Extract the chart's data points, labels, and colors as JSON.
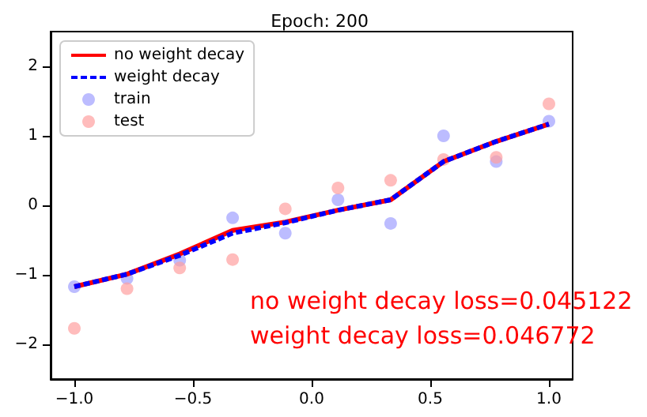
{
  "chart_data": {
    "type": "line",
    "title": "Epoch: 200",
    "x": [
      -1,
      -0.778,
      -0.556,
      -0.333,
      -0.111,
      0.111,
      0.333,
      0.556,
      0.778,
      1
    ],
    "series": [
      {
        "name": "no weight decay",
        "type": "line",
        "color": "#ff0000",
        "line_style": "solid",
        "marker": "none",
        "values": [
          -1.17,
          -0.99,
          -0.7,
          -0.36,
          -0.24,
          -0.07,
          0.08,
          0.63,
          0.92,
          1.17
        ]
      },
      {
        "name": "weight decay",
        "type": "line",
        "color": "#0000ff",
        "line_style": "dashed",
        "marker": "none",
        "values": [
          -1.17,
          -0.99,
          -0.72,
          -0.4,
          -0.25,
          -0.07,
          0.08,
          0.63,
          0.92,
          1.17
        ]
      },
      {
        "name": "train",
        "type": "scatter",
        "color": "#a0a0ff",
        "marker": "circle",
        "values": [
          -1.17,
          -1.05,
          -0.79,
          -0.18,
          -0.4,
          0.08,
          -0.26,
          1.0,
          0.63,
          1.21
        ]
      },
      {
        "name": "test",
        "type": "scatter",
        "color": "#ffa0a0",
        "marker": "circle",
        "values": [
          -1.77,
          -1.2,
          -0.9,
          -0.78,
          -0.05,
          0.25,
          0.36,
          0.66,
          0.69,
          1.46
        ]
      }
    ],
    "xlim": [
      -1.1,
      1.1
    ],
    "ylim": [
      -2.5,
      2.5
    ],
    "xticks": [
      {
        "value": -1,
        "label": "−1.0"
      },
      {
        "value": -0.5,
        "label": "−0.5"
      },
      {
        "value": 0,
        "label": "0.0"
      },
      {
        "value": 0.5,
        "label": "0.5"
      },
      {
        "value": 1,
        "label": "1.0"
      }
    ],
    "yticks": [
      {
        "value": -2,
        "label": "−2"
      },
      {
        "value": -1,
        "label": "−1"
      },
      {
        "value": 0,
        "label": "0"
      },
      {
        "value": 1,
        "label": "1"
      },
      {
        "value": 2,
        "label": "2"
      }
    ],
    "annotations": [
      "no weight decay loss=0.045122",
      "weight decay loss=0.046772"
    ],
    "grid": false,
    "legend": "top left"
  }
}
